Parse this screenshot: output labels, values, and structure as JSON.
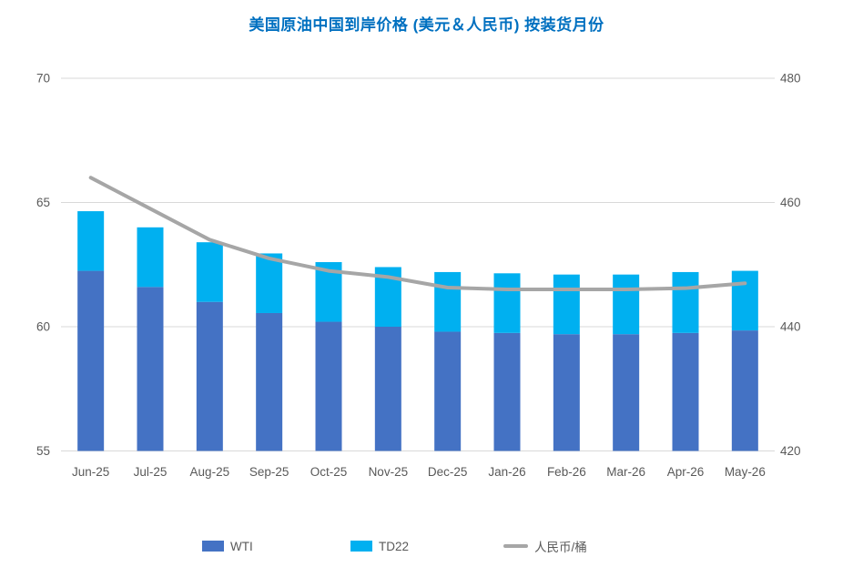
{
  "chart_data": {
    "type": "bar",
    "combo": "stacked-bar-with-line",
    "title": "美国原油中国到岸价格 (美元＆人民币) 按装货月份",
    "title_color": "#0070C0",
    "categories": [
      "Jun-25",
      "Jul-25",
      "Aug-25",
      "Sep-25",
      "Oct-25",
      "Nov-25",
      "Dec-25",
      "Jan-26",
      "Feb-26",
      "Mar-26",
      "Apr-26",
      "May-26"
    ],
    "series": [
      {
        "name": "WTI",
        "type": "bar",
        "stack": "usd",
        "axis": "left",
        "color": "#4472C4",
        "values": [
          62.25,
          61.6,
          61.0,
          60.55,
          60.2,
          60.0,
          59.8,
          59.75,
          59.7,
          59.7,
          59.75,
          59.85
        ]
      },
      {
        "name": "TD22",
        "type": "bar",
        "stack": "usd",
        "axis": "left",
        "color": "#00B0F0",
        "values": [
          2.4,
          2.4,
          2.4,
          2.4,
          2.4,
          2.4,
          2.4,
          2.4,
          2.4,
          2.4,
          2.45,
          2.4
        ]
      },
      {
        "name": "人民币/桶",
        "type": "line",
        "axis": "right",
        "color": "#A6A6A6",
        "values": [
          464,
          459,
          454,
          451,
          449,
          448,
          446.3,
          446,
          446,
          446,
          446.2,
          447
        ]
      }
    ],
    "stacked_totals_usd": [
      64.65,
      64.0,
      63.4,
      62.95,
      62.6,
      62.4,
      62.2,
      62.15,
      62.1,
      62.1,
      62.2,
      62.25
    ],
    "left_axis": {
      "range": [
        55,
        70
      ],
      "ticks": [
        55,
        60,
        65,
        70
      ]
    },
    "right_axis": {
      "range": [
        420,
        480
      ],
      "ticks": [
        420,
        440,
        460,
        480
      ],
      "unit": "人民币/桶"
    },
    "grid": true,
    "gridline_color": "#D9D9D9",
    "axis_text_color": "#595959",
    "legend_position": "bottom",
    "legend": [
      {
        "label": "WTI",
        "color": "#4472C4",
        "shape": "square"
      },
      {
        "label": "TD22",
        "color": "#00B0F0",
        "shape": "square"
      },
      {
        "label": "人民币/桶",
        "color": "#A6A6A6",
        "shape": "line"
      }
    ]
  }
}
